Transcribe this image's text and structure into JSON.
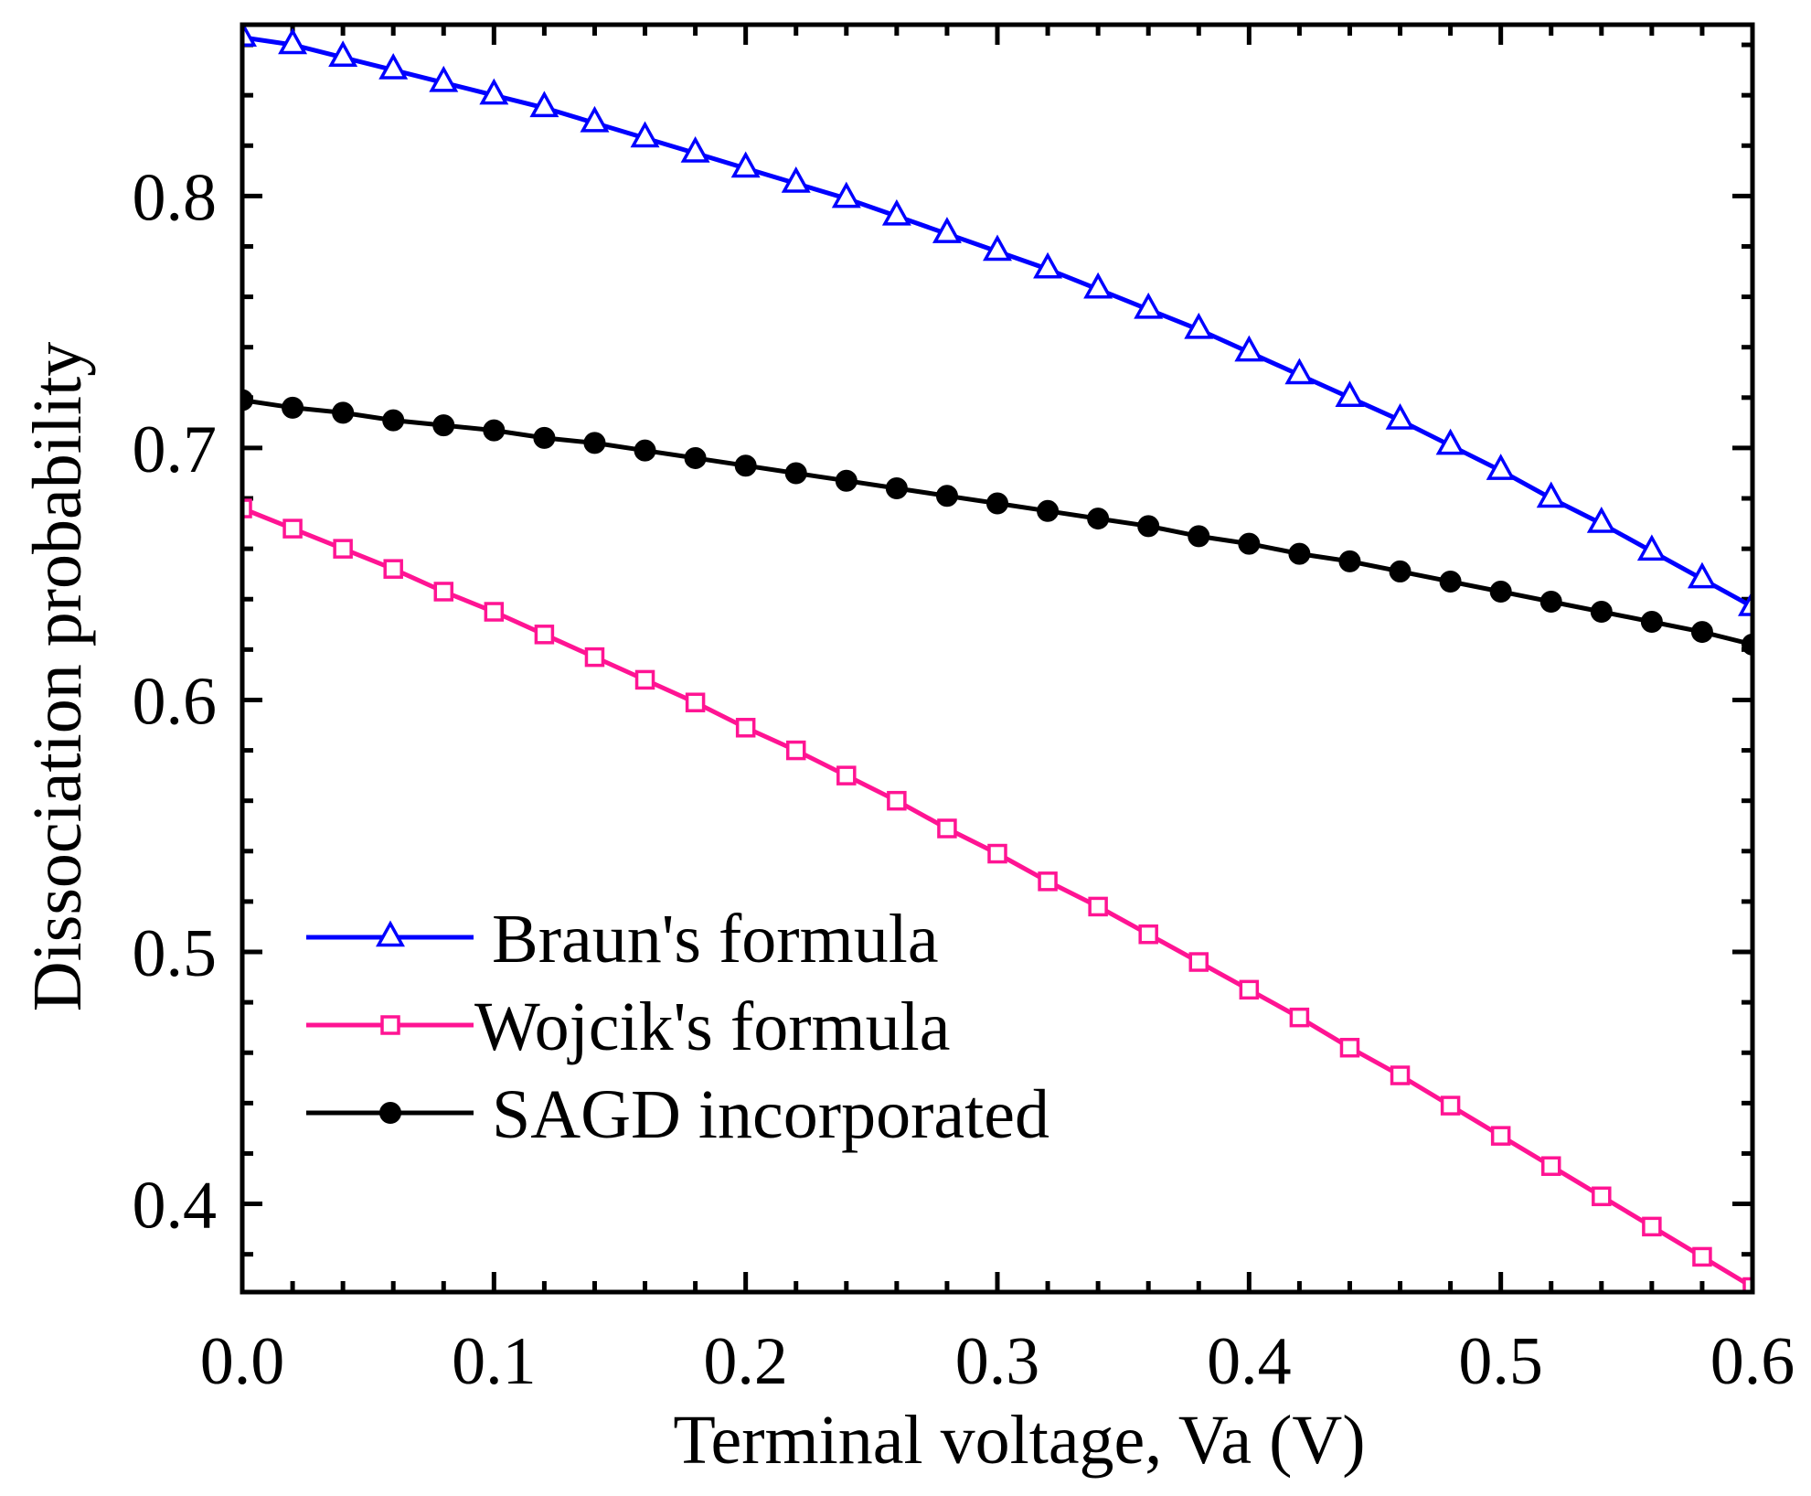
{
  "chart_data": {
    "type": "line",
    "title": "",
    "xlabel": "Terminal voltage, Va (V)",
    "ylabel": "Dissociation probability",
    "xlim": [
      0.0,
      0.6
    ],
    "ylim": [
      0.365,
      0.868
    ],
    "xticks": [
      0.0,
      0.1,
      0.2,
      0.3,
      0.4,
      0.5,
      0.6
    ],
    "xtick_labels": [
      "0.0",
      "0.1",
      "0.2",
      "0.3",
      "0.4",
      "0.5",
      "0.6"
    ],
    "yticks": [
      0.4,
      0.5,
      0.6,
      0.7,
      0.8
    ],
    "ytick_labels": [
      "0.4",
      "0.5",
      "0.6",
      "0.7",
      "0.8"
    ],
    "grid": false,
    "legend_position": "lower-left",
    "x": [
      0.0,
      0.02,
      0.04,
      0.06,
      0.08,
      0.1,
      0.12,
      0.14,
      0.16,
      0.18,
      0.2,
      0.22,
      0.24,
      0.26,
      0.28,
      0.3,
      0.32,
      0.34,
      0.36,
      0.38,
      0.4,
      0.42,
      0.44,
      0.46,
      0.48,
      0.5,
      0.52,
      0.54,
      0.56,
      0.58,
      0.6
    ],
    "series": [
      {
        "name": "Braun's formula",
        "color": "#0000ff",
        "marker": "triangle-open",
        "values": [
          0.863,
          0.86,
          0.855,
          0.85,
          0.845,
          0.84,
          0.835,
          0.829,
          0.823,
          0.817,
          0.811,
          0.805,
          0.799,
          0.792,
          0.785,
          0.778,
          0.771,
          0.763,
          0.755,
          0.747,
          0.738,
          0.729,
          0.72,
          0.711,
          0.701,
          0.691,
          0.68,
          0.67,
          0.659,
          0.648,
          0.637
        ]
      },
      {
        "name": "Wojcik's formula",
        "color": "#ff1493",
        "marker": "square-open",
        "values": [
          0.676,
          0.668,
          0.66,
          0.652,
          0.643,
          0.635,
          0.626,
          0.617,
          0.608,
          0.599,
          0.589,
          0.58,
          0.57,
          0.56,
          0.549,
          0.539,
          0.528,
          0.518,
          0.507,
          0.496,
          0.485,
          0.474,
          0.462,
          0.451,
          0.439,
          0.427,
          0.415,
          0.403,
          0.391,
          0.379,
          0.367
        ]
      },
      {
        "name": "SAGD incorporated",
        "color": "#000000",
        "marker": "circle-filled",
        "values": [
          0.719,
          0.716,
          0.714,
          0.711,
          0.709,
          0.707,
          0.704,
          0.702,
          0.699,
          0.696,
          0.693,
          0.69,
          0.687,
          0.684,
          0.681,
          0.678,
          0.675,
          0.672,
          0.669,
          0.665,
          0.662,
          0.658,
          0.655,
          0.651,
          0.647,
          0.643,
          0.639,
          0.635,
          0.631,
          0.627,
          0.622
        ]
      }
    ]
  }
}
